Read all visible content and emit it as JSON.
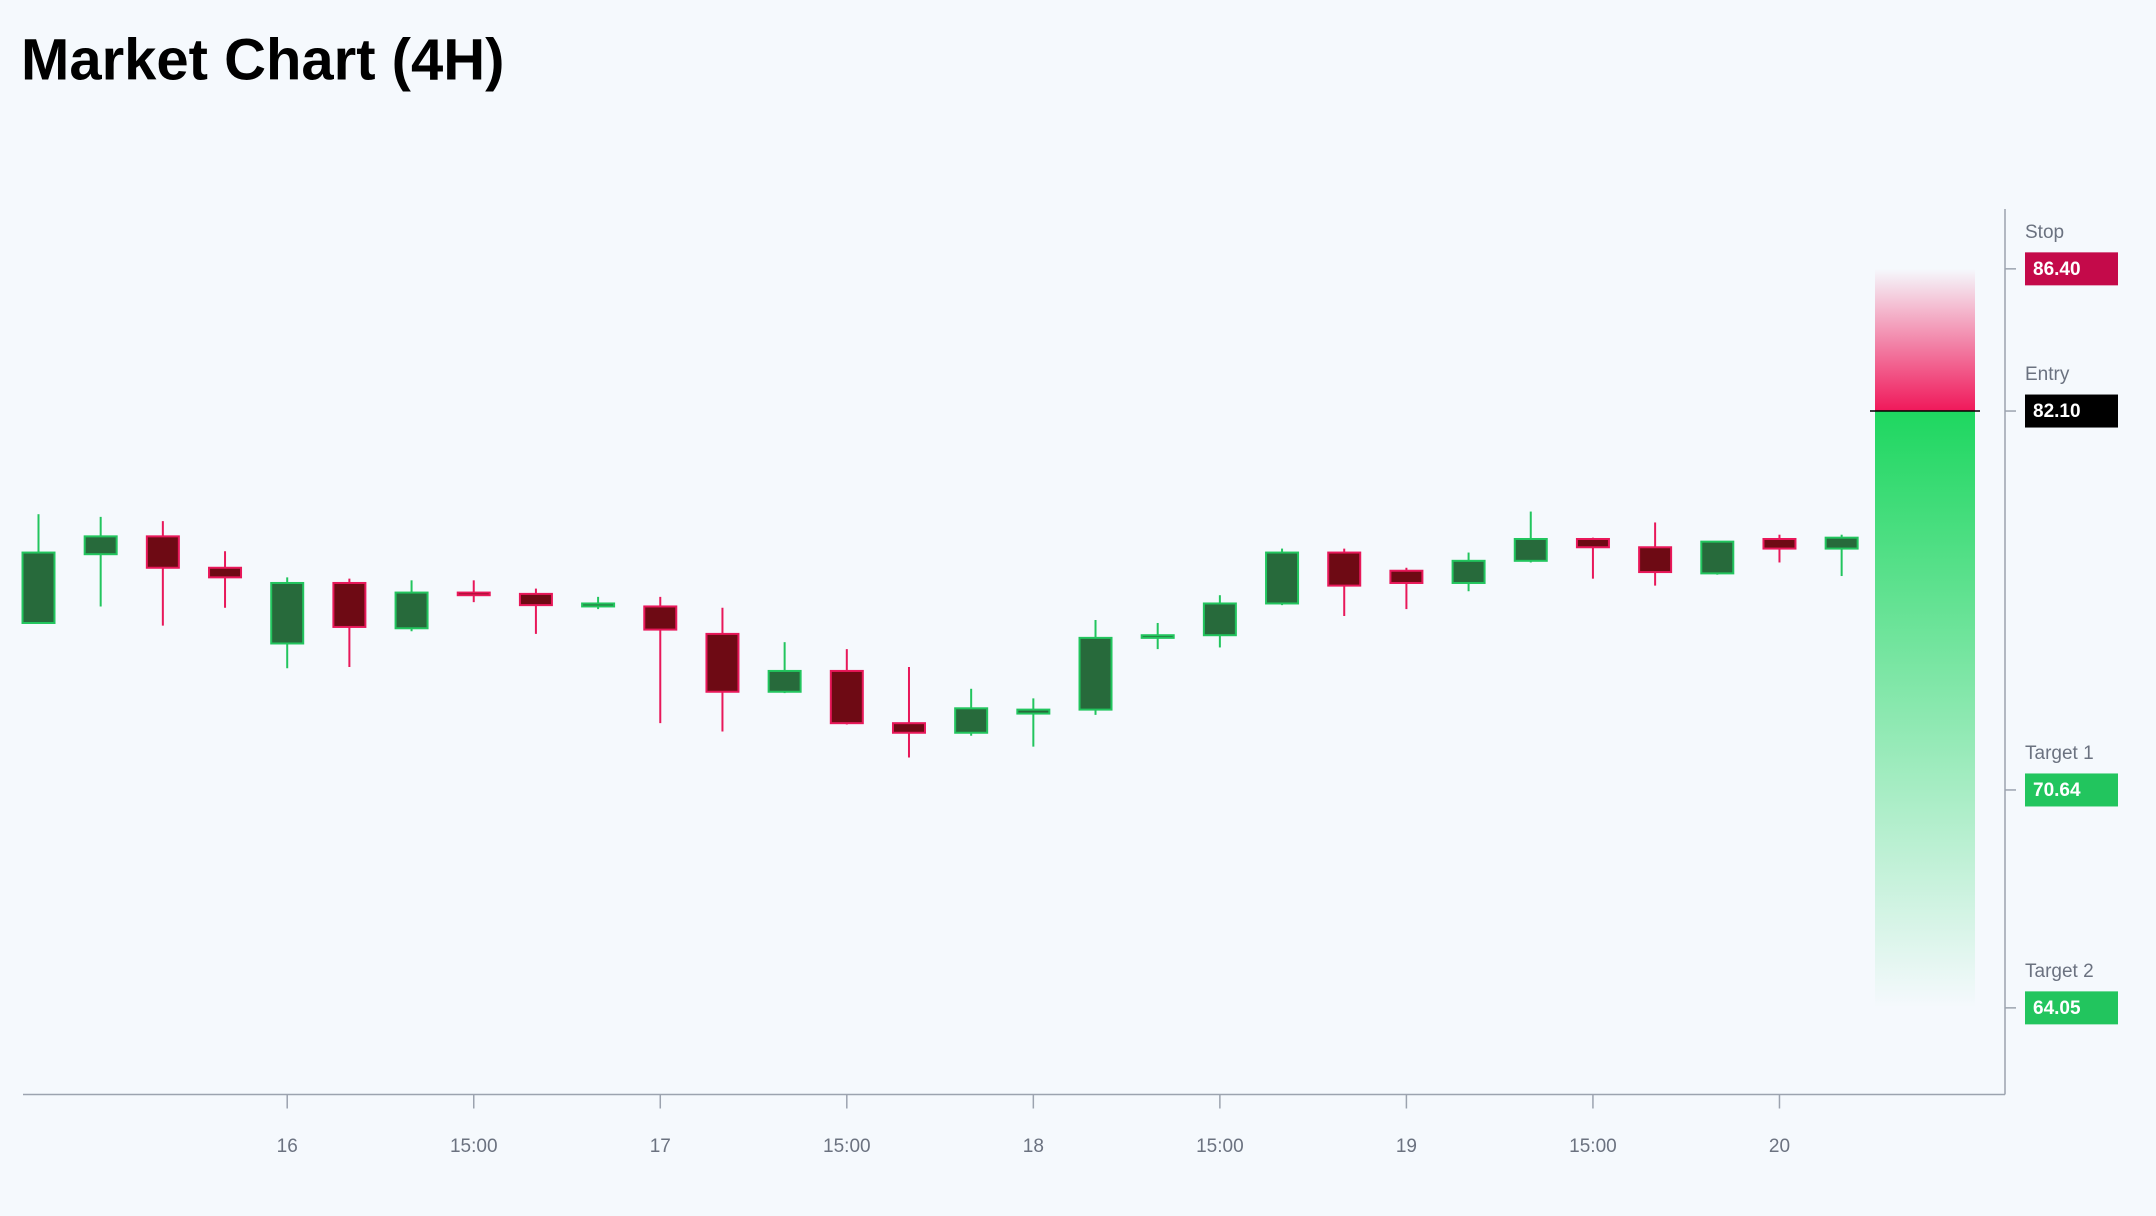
{
  "chart_data": {
    "type": "candlestick",
    "title": "Market Chart (4H)",
    "categories": [
      null,
      null,
      null,
      null,
      "16",
      null,
      null,
      "15:00",
      null,
      null,
      "17",
      null,
      null,
      "15:00",
      null,
      null,
      "18",
      null,
      null,
      "15:00",
      null,
      null,
      "19",
      null,
      null,
      "15:00",
      null,
      null,
      "20",
      null
    ],
    "open": [
      75.69,
      77.77,
      78.31,
      77.36,
      75.07,
      76.9,
      75.53,
      76.61,
      76.57,
      76.19,
      76.19,
      75.36,
      73.61,
      74.24,
      72.66,
      72.37,
      72.95,
      73.07,
      75.24,
      75.32,
      76.28,
      77.82,
      77.27,
      76.9,
      77.57,
      78.23,
      77.98,
      77.19,
      78.23,
      77.94
    ],
    "high": [
      78.98,
      78.9,
      78.77,
      77.86,
      77.07,
      77.03,
      76.98,
      76.98,
      76.73,
      76.48,
      76.48,
      76.15,
      75.11,
      74.9,
      74.36,
      73.7,
      73.41,
      75.78,
      75.69,
      76.53,
      77.94,
      77.94,
      77.36,
      77.82,
      79.06,
      78.27,
      78.73,
      78.15,
      78.36,
      78.36
    ],
    "low": [
      75.69,
      76.19,
      75.61,
      76.15,
      74.32,
      74.36,
      75.44,
      76.32,
      75.36,
      76.11,
      72.66,
      72.41,
      73.57,
      72.62,
      71.62,
      72.28,
      71.95,
      72.91,
      74.9,
      74.95,
      76.23,
      75.9,
      76.11,
      76.65,
      77.52,
      77.03,
      76.82,
      77.15,
      77.52,
      77.11
    ],
    "close": [
      77.82,
      78.31,
      77.36,
      77.07,
      76.9,
      75.57,
      76.61,
      76.53,
      76.23,
      76.28,
      75.49,
      73.61,
      74.24,
      72.66,
      72.37,
      73.11,
      73.07,
      75.24,
      75.32,
      76.28,
      77.82,
      76.82,
      76.9,
      77.57,
      78.23,
      77.98,
      77.23,
      78.15,
      77.94,
      78.27
    ],
    "up_color": "#22c55e",
    "up_fill": "#276a3b",
    "down_color": "#e8185a",
    "down_fill": "#6e0a14",
    "ylim": [
      61.43,
      88.21
    ],
    "levels": {
      "names": [
        "Stop",
        "Entry",
        "Target 1",
        "Target 2"
      ],
      "values": [
        86.4,
        82.1,
        70.64,
        64.05
      ],
      "value_labels": [
        "86.40",
        "82.10",
        "70.64",
        "64.05"
      ],
      "colors": [
        "#c40a4a",
        "#000000",
        "#22c55e",
        "#22c55e"
      ]
    }
  }
}
